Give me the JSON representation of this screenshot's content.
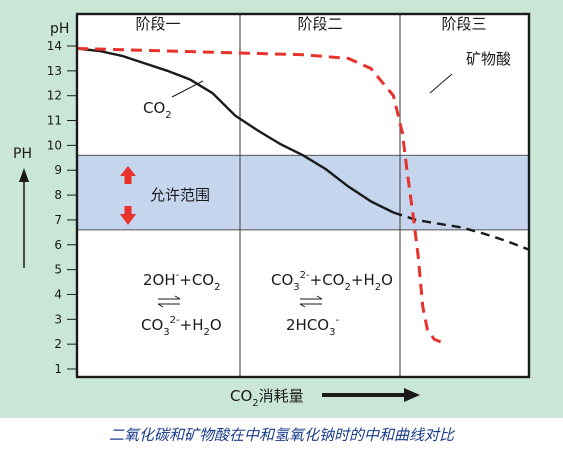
{
  "caption": "二氧化碳和矿物酸在中和氢氧化钠时的中和曲线对比",
  "colors": {
    "frame_bg": "#c9e6d6",
    "band": "#c6d5ee",
    "co2_curve": "#1a1a1a",
    "acid_curve": "#e8322c",
    "arrow": "#e8322c"
  },
  "chart_data": {
    "type": "line",
    "ylabel_top": "pH",
    "ylabel_side": "PH",
    "xlabel_base": "CO",
    "xlabel_sub": "2",
    "xlabel_tail": "消耗量",
    "ylim": [
      0.5,
      14.5
    ],
    "yticks": [
      "1",
      "2",
      "3",
      "4",
      "5",
      "6",
      "7",
      "8",
      "9",
      "10",
      "11",
      "12",
      "13",
      "14"
    ],
    "stages": [
      "阶段一",
      "阶段二",
      "阶段三"
    ],
    "band": {
      "label": "允许范围",
      "range": [
        6.6,
        9.6
      ]
    },
    "series": [
      {
        "name": "CO₂",
        "label_base": "CO",
        "label_sub": "2",
        "x": [
          0,
          0.05,
          0.1,
          0.15,
          0.2,
          0.25,
          0.3,
          0.35,
          0.4,
          0.45,
          0.5,
          0.55,
          0.6,
          0.65,
          0.7,
          0.75,
          0.8,
          0.85,
          0.9,
          0.95,
          1.0
        ],
        "y": [
          13.9,
          13.8,
          13.6,
          13.3,
          13.0,
          12.65,
          12.1,
          11.2,
          10.6,
          10.05,
          9.6,
          9.05,
          8.35,
          7.75,
          7.3,
          7.0,
          6.85,
          6.7,
          6.45,
          6.15,
          5.8
        ]
      },
      {
        "name": "矿物酸",
        "x": [
          0,
          0.1,
          0.2,
          0.3,
          0.4,
          0.5,
          0.6,
          0.65,
          0.7,
          0.72,
          0.73,
          0.745,
          0.755,
          0.76,
          0.765,
          0.775,
          0.79,
          0.81
        ],
        "y": [
          13.9,
          13.85,
          13.8,
          13.75,
          13.7,
          13.65,
          13.5,
          13.1,
          12.0,
          10.5,
          9.0,
          7.0,
          5.5,
          4.5,
          3.5,
          2.6,
          2.2,
          2.05
        ]
      }
    ],
    "equations": {
      "stage1_top": [
        "2OH",
        "-",
        "+CO",
        "2"
      ],
      "stage1_bottom": [
        "CO",
        "3",
        "2-",
        "+H",
        "2",
        "O"
      ],
      "stage2_top": [
        "CO",
        "3",
        "2-",
        "+CO",
        "2",
        "+H",
        "2",
        "O"
      ],
      "stage2_bottom": [
        "2HCO",
        "3",
        "-"
      ]
    }
  }
}
